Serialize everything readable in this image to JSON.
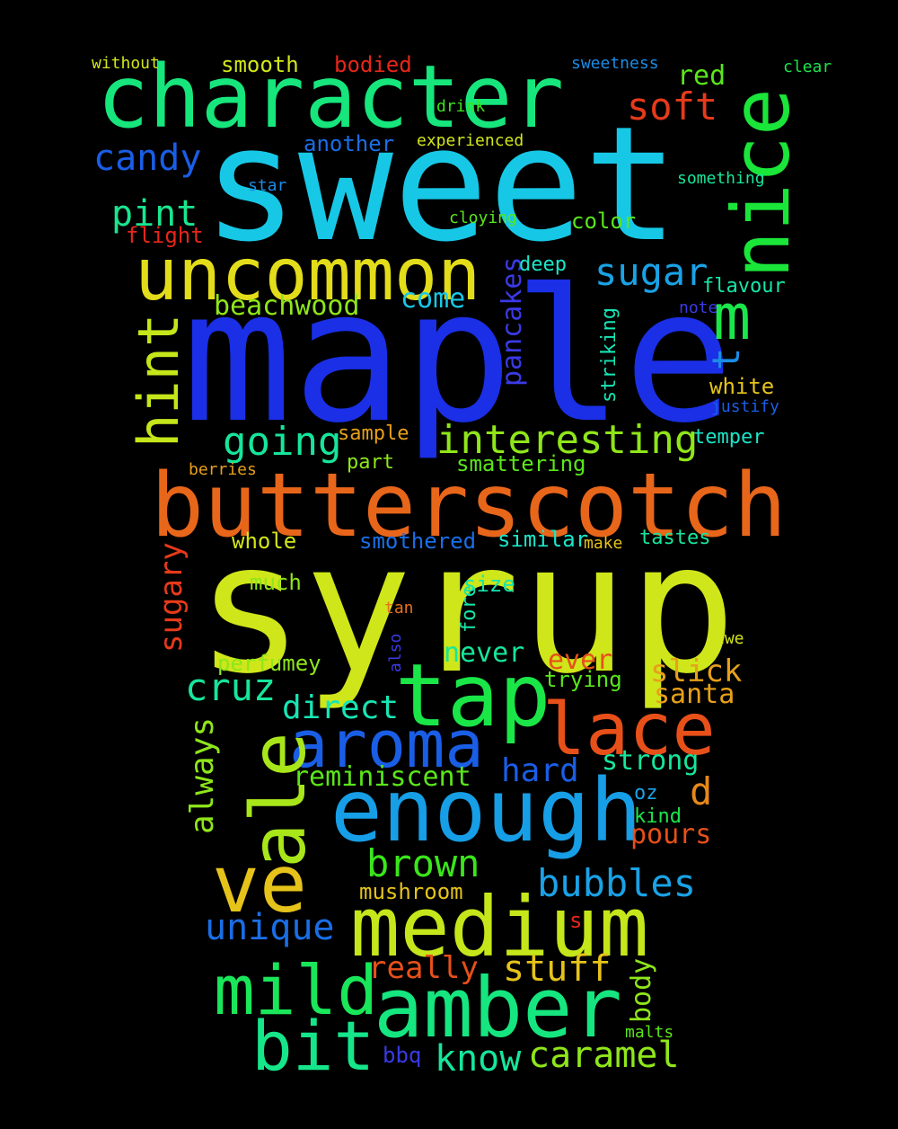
{
  "words": [
    {
      "text": "maple",
      "color": "#1a2fe6"
    },
    {
      "text": "syrup",
      "color": "#cfe61a"
    },
    {
      "text": "sweet",
      "color": "#17c8e6"
    },
    {
      "text": "character",
      "color": "#16e67c"
    },
    {
      "text": "butterscotch",
      "color": "#e8661a"
    },
    {
      "text": "uncommon",
      "color": "#e2dc1a"
    },
    {
      "text": "nice",
      "color": "#1ae63a"
    },
    {
      "text": "enough",
      "color": "#169ee6"
    },
    {
      "text": "medium",
      "color": "#c5e61a"
    },
    {
      "text": "amber",
      "color": "#16e67f"
    },
    {
      "text": "aroma",
      "color": "#1a5ee6"
    },
    {
      "text": "tap",
      "color": "#1ae648"
    },
    {
      "text": "lace",
      "color": "#e8501a"
    },
    {
      "text": "ve",
      "color": "#e6c31a"
    },
    {
      "text": "ale",
      "color": "#a8e61a"
    },
    {
      "text": "mild",
      "color": "#1ae65a"
    },
    {
      "text": "bit",
      "color": "#16e68a"
    },
    {
      "text": "hint",
      "color": "#c5e61a"
    },
    {
      "text": "interesting",
      "color": "#8fe61a"
    },
    {
      "text": "going",
      "color": "#16e69b"
    },
    {
      "text": "sugar",
      "color": "#1aa2e6"
    },
    {
      "text": "soft",
      "color": "#e63a1a"
    },
    {
      "text": "m",
      "color": "#1ae64a"
    },
    {
      "text": "t",
      "color": "#1a8ce6"
    },
    {
      "text": "candy",
      "color": "#1a5ee6"
    },
    {
      "text": "pint",
      "color": "#1ae68f"
    },
    {
      "text": "beachwood",
      "color": "#8fe61a"
    },
    {
      "text": "come",
      "color": "#17c8e6"
    },
    {
      "text": "pancakes",
      "color": "#3a3ae6"
    },
    {
      "text": "striking",
      "color": "#16e6b5"
    },
    {
      "text": "deep",
      "color": "#1ae6c8"
    },
    {
      "text": "flavour",
      "color": "#16e6a8"
    },
    {
      "text": "note",
      "color": "#3a3ae6"
    },
    {
      "text": "white",
      "color": "#e6c31a"
    },
    {
      "text": "justify",
      "color": "#1a5ee6"
    },
    {
      "text": "temper",
      "color": "#1ae6c8"
    },
    {
      "text": "color",
      "color": "#5ae61a"
    },
    {
      "text": "cloying",
      "color": "#5ae61a"
    },
    {
      "text": "something",
      "color": "#16e69b"
    },
    {
      "text": "star",
      "color": "#1a8ce6"
    },
    {
      "text": "flight",
      "color": "#e6261a"
    },
    {
      "text": "another",
      "color": "#1a6ee6"
    },
    {
      "text": "experienced",
      "color": "#d2e61a"
    },
    {
      "text": "drink",
      "color": "#3ae61a"
    },
    {
      "text": "red",
      "color": "#5ae61a"
    },
    {
      "text": "clear",
      "color": "#1ae64a"
    },
    {
      "text": "sweetness",
      "color": "#1a8ce6"
    },
    {
      "text": "bodied",
      "color": "#e6261a"
    },
    {
      "text": "smooth",
      "color": "#d2e61a"
    },
    {
      "text": "without",
      "color": "#d2e61a"
    },
    {
      "text": "sample",
      "color": "#e6a01a"
    },
    {
      "text": "part",
      "color": "#8fe61a"
    },
    {
      "text": "smattering",
      "color": "#5ae61a"
    },
    {
      "text": "berries",
      "color": "#e6a01a"
    },
    {
      "text": "sugary",
      "color": "#e63a1a"
    },
    {
      "text": "whole",
      "color": "#d2e61a"
    },
    {
      "text": "smothered",
      "color": "#1a6ee6"
    },
    {
      "text": "similar",
      "color": "#1ae6c8"
    },
    {
      "text": "make",
      "color": "#e6c31a"
    },
    {
      "text": "tastes",
      "color": "#16e69b"
    },
    {
      "text": "much",
      "color": "#8fe61a"
    },
    {
      "text": "size",
      "color": "#16e6a8"
    },
    {
      "text": "fore",
      "color": "#16e6a8"
    },
    {
      "text": "tan",
      "color": "#e6701a"
    },
    {
      "text": "also",
      "color": "#3a3ae6"
    },
    {
      "text": "awe",
      "color": "#d2e61a"
    },
    {
      "text": "perfumey",
      "color": "#8fe61a"
    },
    {
      "text": "never",
      "color": "#16e69b"
    },
    {
      "text": "ever",
      "color": "#e6501a"
    },
    {
      "text": "trying",
      "color": "#5ae61a"
    },
    {
      "text": "slick",
      "color": "#e6a01a"
    },
    {
      "text": "santa",
      "color": "#e6a01a"
    },
    {
      "text": "cruz",
      "color": "#16e69b"
    },
    {
      "text": "always",
      "color": "#8fe61a"
    },
    {
      "text": "direct",
      "color": "#16e6b5"
    },
    {
      "text": "hard",
      "color": "#1a5ee6"
    },
    {
      "text": "strong",
      "color": "#16e69b"
    },
    {
      "text": "reminiscent",
      "color": "#5ae61a"
    },
    {
      "text": "d",
      "color": "#e6881a"
    },
    {
      "text": "oz",
      "color": "#1aa2e6"
    },
    {
      "text": "kind",
      "color": "#1ae64a"
    },
    {
      "text": "pours",
      "color": "#e6501a"
    },
    {
      "text": "brown",
      "color": "#3ae61a"
    },
    {
      "text": "bubbles",
      "color": "#1aa2e6"
    },
    {
      "text": "mushroom",
      "color": "#e6c31a"
    },
    {
      "text": "unique",
      "color": "#1a6ee6"
    },
    {
      "text": "s",
      "color": "#e6261a"
    },
    {
      "text": "really",
      "color": "#e6501a"
    },
    {
      "text": "stuff",
      "color": "#e6c31a"
    },
    {
      "text": "body",
      "color": "#8fe61a"
    },
    {
      "text": "know",
      "color": "#16e69b"
    },
    {
      "text": "caramel",
      "color": "#8fe61a"
    },
    {
      "text": "malts",
      "color": "#5ae61a"
    },
    {
      "text": "bbq",
      "color": "#3a3ae6"
    }
  ]
}
